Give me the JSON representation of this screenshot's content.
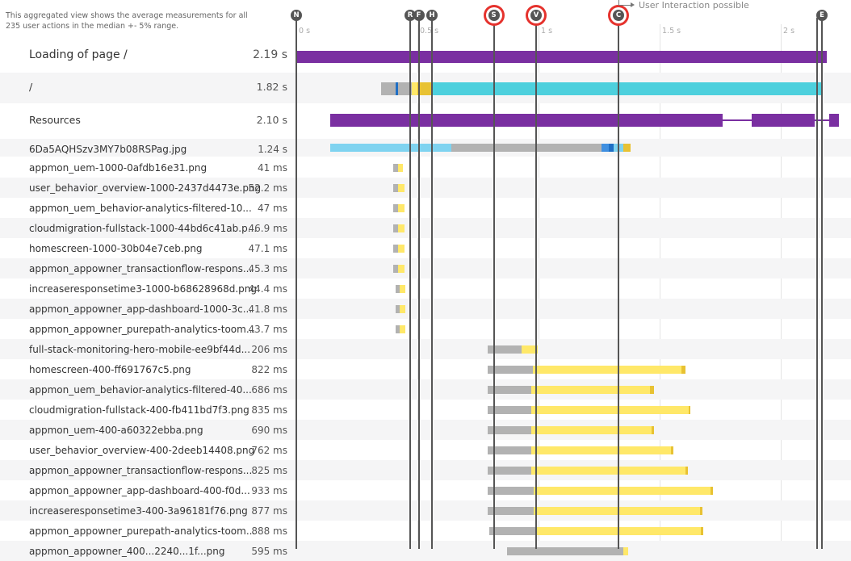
{
  "note": "This aggregated view shows the average measurements for all 235 user actions in the median +- 5% range.",
  "interaction_note": "User Interaction possible",
  "axis": {
    "ticks": [
      "0 s",
      "0.5 s",
      "1 s",
      "1.5 s",
      "2 s"
    ]
  },
  "colors": {
    "purple": "#7a2fa1",
    "teal": "#4dd0dd",
    "lightblue": "#7fd3f0",
    "gray": "#b2b2b2",
    "yellow": "#ffe869",
    "gold": "#e8c233",
    "blue": "#1f6fc5",
    "dark": "#444444",
    "marker": "#555555",
    "highlight": "#e5322d"
  },
  "markers": [
    {
      "letter": "N",
      "t": 0.0,
      "highlight": false
    },
    {
      "letter": "R",
      "t": 0.47,
      "highlight": false
    },
    {
      "letter": "F",
      "t": 0.505,
      "highlight": false
    },
    {
      "letter": "H",
      "t": 0.56,
      "highlight": false
    },
    {
      "letter": "S",
      "t": 0.815,
      "highlight": true
    },
    {
      "letter": "V",
      "t": 0.99,
      "highlight": true
    },
    {
      "letter": "C",
      "t": 1.33,
      "highlight": true
    },
    {
      "letter": "",
      "t": 2.15,
      "highlight": false
    },
    {
      "letter": "E",
      "t": 2.17,
      "highlight": false
    }
  ],
  "rows": [
    {
      "name": "Loading of page /",
      "value": "2.19 s",
      "size": "big",
      "shade": false,
      "segments": [
        {
          "s": 0.0,
          "e": 2.19,
          "c": "purple"
        }
      ]
    },
    {
      "name": "/",
      "value": "1.82 s",
      "size": "mid",
      "shade": true,
      "segments": [
        {
          "s": 0.35,
          "e": 0.41,
          "c": "gray"
        },
        {
          "s": 0.41,
          "e": 0.42,
          "c": "blue"
        },
        {
          "s": 0.42,
          "e": 0.475,
          "c": "gray"
        },
        {
          "s": 0.475,
          "e": 0.5,
          "c": "yellow"
        },
        {
          "s": 0.5,
          "e": 0.56,
          "c": "gold"
        },
        {
          "s": 0.56,
          "e": 2.17,
          "c": "teal"
        }
      ]
    },
    {
      "name": "Resources",
      "value": "2.10 s",
      "size": "mid",
      "shade": false,
      "segments": [
        {
          "s": 0.14,
          "e": 1.76,
          "c": "purple"
        },
        {
          "s": 1.76,
          "e": 1.88,
          "c": "line"
        },
        {
          "s": 1.88,
          "e": 2.14,
          "c": "purple"
        },
        {
          "s": 2.14,
          "e": 2.2,
          "c": "line"
        },
        {
          "s": 2.2,
          "e": 2.24,
          "c": "purple"
        }
      ]
    },
    {
      "name": "6Da5AQHSzv3MY7b08RSPag.jpg",
      "value": "1.24 s",
      "size": "small",
      "shade": true,
      "segments": [
        {
          "s": 0.14,
          "e": 0.64,
          "c": "lightblue"
        },
        {
          "s": 0.64,
          "e": 1.26,
          "c": "gray"
        },
        {
          "s": 1.26,
          "e": 1.29,
          "c": "blue-mid"
        },
        {
          "s": 1.29,
          "e": 1.31,
          "c": "blue"
        },
        {
          "s": 1.31,
          "e": 1.35,
          "c": "lightblue"
        },
        {
          "s": 1.35,
          "e": 1.38,
          "c": "gold"
        }
      ]
    },
    {
      "name": "appmon_uem-1000-0afdb16e31.png",
      "value": "41 ms",
      "size": "small",
      "shade": false,
      "segments": [
        {
          "s": 0.4,
          "e": 0.42,
          "c": "gray"
        },
        {
          "s": 0.42,
          "e": 0.44,
          "c": "yellow"
        }
      ]
    },
    {
      "name": "user_behavior_overview-1000-2437d4473e.png",
      "value": "52.2 ms",
      "size": "small",
      "shade": true,
      "segments": [
        {
          "s": 0.4,
          "e": 0.42,
          "c": "gray"
        },
        {
          "s": 0.42,
          "e": 0.445,
          "c": "yellow"
        }
      ]
    },
    {
      "name": "appmon_uem_behavior-analytics-filtered-10...",
      "value": "47 ms",
      "size": "small",
      "shade": false,
      "segments": [
        {
          "s": 0.4,
          "e": 0.42,
          "c": "gray"
        },
        {
          "s": 0.42,
          "e": 0.445,
          "c": "yellow"
        }
      ]
    },
    {
      "name": "cloudmigration-fullstack-1000-44bd6c41ab.p...",
      "value": "46.9 ms",
      "size": "small",
      "shade": true,
      "segments": [
        {
          "s": 0.4,
          "e": 0.42,
          "c": "gray"
        },
        {
          "s": 0.42,
          "e": 0.445,
          "c": "yellow"
        }
      ]
    },
    {
      "name": "homescreen-1000-30b04e7ceb.png",
      "value": "47.1 ms",
      "size": "small",
      "shade": false,
      "segments": [
        {
          "s": 0.4,
          "e": 0.42,
          "c": "gray"
        },
        {
          "s": 0.42,
          "e": 0.445,
          "c": "yellow"
        }
      ]
    },
    {
      "name": "appmon_appowner_transactionflow-respons...",
      "value": "45.3 ms",
      "size": "small",
      "shade": true,
      "segments": [
        {
          "s": 0.4,
          "e": 0.42,
          "c": "gray"
        },
        {
          "s": 0.42,
          "e": 0.445,
          "c": "yellow"
        }
      ]
    },
    {
      "name": "increaseresponsetime3-1000-b68628968d.png",
      "value": "44.4 ms",
      "size": "small",
      "shade": false,
      "segments": [
        {
          "s": 0.41,
          "e": 0.425,
          "c": "gray"
        },
        {
          "s": 0.425,
          "e": 0.45,
          "c": "yellow"
        }
      ]
    },
    {
      "name": "appmon_appowner_app-dashboard-1000-3c...",
      "value": "41.8 ms",
      "size": "small",
      "shade": true,
      "segments": [
        {
          "s": 0.41,
          "e": 0.425,
          "c": "gray"
        },
        {
          "s": 0.425,
          "e": 0.45,
          "c": "yellow"
        }
      ]
    },
    {
      "name": "appmon_appowner_purepath-analytics-toom...",
      "value": "43.7 ms",
      "size": "small",
      "shade": false,
      "segments": [
        {
          "s": 0.41,
          "e": 0.425,
          "c": "gray"
        },
        {
          "s": 0.425,
          "e": 0.45,
          "c": "yellow"
        }
      ]
    },
    {
      "name": "full-stack-monitoring-hero-mobile-ee9bf44d...",
      "value": "206 ms",
      "size": "small",
      "shade": true,
      "segments": [
        {
          "s": 0.79,
          "e": 0.93,
          "c": "gray"
        },
        {
          "s": 0.93,
          "e": 0.995,
          "c": "yellow"
        }
      ]
    },
    {
      "name": "homescreen-400-ff691767c5.png",
      "value": "822 ms",
      "size": "small",
      "shade": false,
      "segments": [
        {
          "s": 0.79,
          "e": 0.975,
          "c": "gray"
        },
        {
          "s": 0.975,
          "e": 1.59,
          "c": "yellow"
        },
        {
          "s": 1.59,
          "e": 1.605,
          "c": "gold"
        }
      ]
    },
    {
      "name": "appmon_uem_behavior-analytics-filtered-40...",
      "value": "686 ms",
      "size": "small",
      "shade": true,
      "segments": [
        {
          "s": 0.79,
          "e": 0.97,
          "c": "gray"
        },
        {
          "s": 0.97,
          "e": 1.46,
          "c": "yellow"
        },
        {
          "s": 1.46,
          "e": 1.475,
          "c": "gold"
        }
      ]
    },
    {
      "name": "cloudmigration-fullstack-400-fb411bd7f3.png",
      "value": "835 ms",
      "size": "small",
      "shade": false,
      "segments": [
        {
          "s": 0.79,
          "e": 0.97,
          "c": "gray"
        },
        {
          "s": 0.97,
          "e": 1.62,
          "c": "yellow"
        },
        {
          "s": 1.62,
          "e": 1.625,
          "c": "gold"
        }
      ]
    },
    {
      "name": "appmon_uem-400-a60322ebba.png",
      "value": "690 ms",
      "size": "small",
      "shade": true,
      "segments": [
        {
          "s": 0.79,
          "e": 0.97,
          "c": "gray"
        },
        {
          "s": 0.97,
          "e": 1.465,
          "c": "yellow"
        },
        {
          "s": 1.465,
          "e": 1.475,
          "c": "gold"
        }
      ]
    },
    {
      "name": "user_behavior_overview-400-2deeb14408.png",
      "value": "762 ms",
      "size": "small",
      "shade": false,
      "segments": [
        {
          "s": 0.79,
          "e": 0.97,
          "c": "gray"
        },
        {
          "s": 0.97,
          "e": 1.545,
          "c": "yellow"
        },
        {
          "s": 1.545,
          "e": 1.555,
          "c": "gold"
        }
      ]
    },
    {
      "name": "appmon_appowner_transactionflow-respons...",
      "value": "825 ms",
      "size": "small",
      "shade": true,
      "segments": [
        {
          "s": 0.79,
          "e": 0.97,
          "c": "gray"
        },
        {
          "s": 0.97,
          "e": 1.605,
          "c": "yellow"
        },
        {
          "s": 1.605,
          "e": 1.615,
          "c": "gold"
        }
      ]
    },
    {
      "name": "appmon_appowner_app-dashboard-400-f0d...",
      "value": "933 ms",
      "size": "small",
      "shade": false,
      "segments": [
        {
          "s": 0.79,
          "e": 0.98,
          "c": "gray"
        },
        {
          "s": 0.98,
          "e": 1.71,
          "c": "yellow"
        },
        {
          "s": 1.71,
          "e": 1.72,
          "c": "gold"
        }
      ]
    },
    {
      "name": "increaseresponsetime3-400-3a96181f76.png",
      "value": "877 ms",
      "size": "small",
      "shade": true,
      "segments": [
        {
          "s": 0.79,
          "e": 0.98,
          "c": "gray"
        },
        {
          "s": 0.98,
          "e": 1.665,
          "c": "yellow"
        },
        {
          "s": 1.665,
          "e": 1.675,
          "c": "gold"
        }
      ]
    },
    {
      "name": "appmon_appowner_purepath-analytics-toom...",
      "value": "888 ms",
      "size": "small",
      "shade": false,
      "segments": [
        {
          "s": 0.795,
          "e": 0.985,
          "c": "gray"
        },
        {
          "s": 0.985,
          "e": 1.67,
          "c": "yellow"
        },
        {
          "s": 1.67,
          "e": 1.68,
          "c": "gold"
        }
      ]
    },
    {
      "name": "appmon_appowner_400...2240...1f...png",
      "value": "595 ms",
      "size": "small",
      "shade": true,
      "segments": [
        {
          "s": 0.87,
          "e": 1.35,
          "c": "gray"
        },
        {
          "s": 1.35,
          "e": 1.37,
          "c": "yellow"
        }
      ]
    }
  ]
}
